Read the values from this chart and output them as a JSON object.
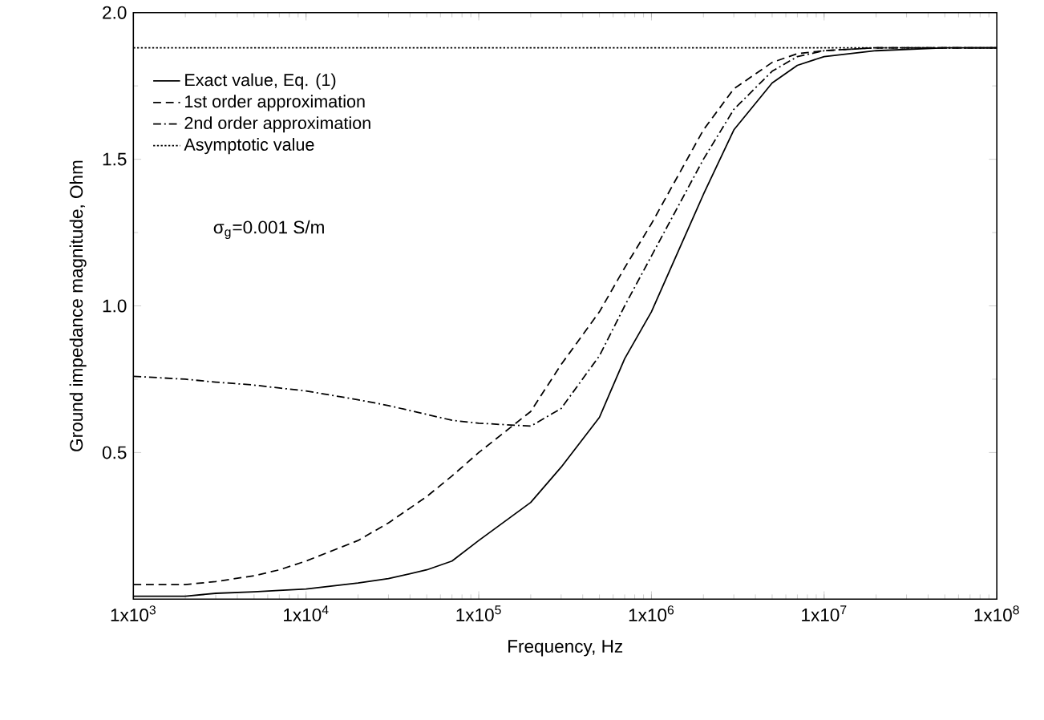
{
  "chart_data": {
    "type": "line",
    "xlabel": "Frequency, Hz",
    "ylabel": "Ground impedance magnitude, Ohm",
    "annotations": [
      "σ$_{g}$=0.001 S/m"
    ],
    "log": "x",
    "legend": "top left",
    "grid": false,
    "marker": "none",
    "x": [
      1000,
      2000,
      3000,
      5000,
      7000,
      10000,
      20000,
      30000,
      50000,
      70000,
      100000,
      200000,
      300000,
      500000,
      700000,
      1000000,
      2000000,
      3000000,
      5000000,
      7000000,
      10000000,
      20000000,
      50000000,
      100000000
    ],
    "series": [
      {
        "name": "Exact value, Eq. (1)",
        "color": "#000000",
        "line_style": "solid",
        "values": [
          0.01,
          0.01,
          0.02,
          0.025,
          0.03,
          0.035,
          0.055,
          0.07,
          0.1,
          0.13,
          0.2,
          0.33,
          0.45,
          0.62,
          0.82,
          0.98,
          1.38,
          1.6,
          1.76,
          1.82,
          1.85,
          1.87,
          1.88,
          1.88
        ]
      },
      {
        "name": "1st order approximation",
        "color": "#000000",
        "line_style": "dashed",
        "values": [
          0.05,
          0.05,
          0.06,
          0.08,
          0.1,
          0.13,
          0.2,
          0.26,
          0.35,
          0.42,
          0.5,
          0.64,
          0.8,
          0.98,
          1.13,
          1.28,
          1.6,
          1.74,
          1.83,
          1.86,
          1.87,
          1.88,
          1.88,
          1.88
        ]
      },
      {
        "name": "2nd order approximation",
        "color": "#000000",
        "line_style": "dashdot",
        "values": [
          0.76,
          0.75,
          0.74,
          0.73,
          0.72,
          0.71,
          0.68,
          0.66,
          0.63,
          0.61,
          0.6,
          0.59,
          0.65,
          0.83,
          1.0,
          1.17,
          1.5,
          1.67,
          1.8,
          1.85,
          1.87,
          1.88,
          1.88,
          1.88
        ]
      },
      {
        "name": "Asymptotic value",
        "color": "#000000",
        "line_style": "dotted",
        "x": [
          1000,
          100000000
        ],
        "values": [
          1.88,
          1.88
        ]
      }
    ],
    "xlim": [
      1000,
      100000000
    ],
    "ylim": [
      0,
      2
    ],
    "xticks": [
      {
        "value": 1000,
        "label": "1x10$^{3}$"
      },
      {
        "value": 10000,
        "label": "1x10$^{4}$"
      },
      {
        "value": 100000,
        "label": "1x10$^{5}$"
      },
      {
        "value": 1000000,
        "label": "1x10$^{6}$"
      },
      {
        "value": 10000000,
        "label": "1x10$^{7}$"
      },
      {
        "value": 100000000,
        "label": "1x10$^{8}$"
      }
    ],
    "yticks": [
      {
        "value": 0.5,
        "label": "0.5"
      },
      {
        "value": 1,
        "label": "1.0"
      },
      {
        "value": 1.5,
        "label": "1.5"
      },
      {
        "value": 2,
        "label": "2.0"
      }
    ]
  }
}
